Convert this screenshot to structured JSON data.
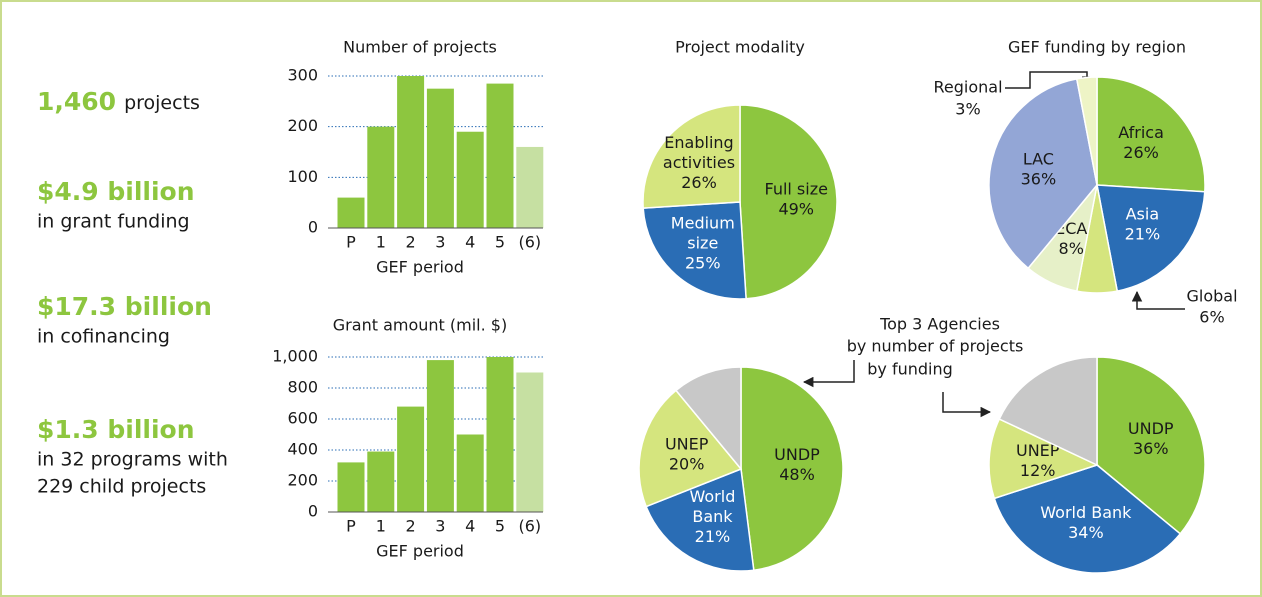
{
  "stats": [
    {
      "value": "1,460",
      "lines": [
        "projects"
      ]
    },
    {
      "value": "$4.9 billion",
      "lines": [
        "in grant funding"
      ]
    },
    {
      "value": "$17.3 billion",
      "lines": [
        "in cofinancing"
      ]
    },
    {
      "value": "$1.3 billion",
      "lines": [
        "in 32 programs with",
        "229 child projects"
      ]
    }
  ],
  "agencies_title": [
    "Top 3 Agencies",
    "by number of projects",
    "by funding"
  ],
  "chart_data": [
    {
      "type": "bar",
      "title": "Number of projects",
      "x_label": "GEF period",
      "categories": [
        "P",
        "1",
        "2",
        "3",
        "4",
        "5",
        "(6)"
      ],
      "values": [
        60,
        200,
        300,
        275,
        190,
        285,
        160
      ],
      "colors": [
        "#8dc63f",
        "#8dc63f",
        "#8dc63f",
        "#8dc63f",
        "#8dc63f",
        "#8dc63f",
        "#c6e0a2"
      ],
      "ylim": [
        0,
        300
      ],
      "yticks": [
        0,
        100,
        200,
        300
      ],
      "grid": true
    },
    {
      "type": "bar",
      "title": "Grant amount (mil. $)",
      "x_label": "GEF period",
      "categories": [
        "P",
        "1",
        "2",
        "3",
        "4",
        "5",
        "(6)"
      ],
      "values": [
        320,
        390,
        680,
        980,
        500,
        1000,
        900
      ],
      "colors": [
        "#8dc63f",
        "#8dc63f",
        "#8dc63f",
        "#8dc63f",
        "#8dc63f",
        "#8dc63f",
        "#c6e0a2"
      ],
      "ylim": [
        0,
        1000
      ],
      "yticks": [
        0,
        200,
        400,
        600,
        800,
        {
          "value": 1000,
          "label": "1,000"
        }
      ],
      "grid": true
    },
    {
      "type": "pie",
      "title": "Project modality",
      "labels": [
        [
          "Full size"
        ],
        [
          "Medium",
          "size"
        ],
        [
          "Enabling",
          "activities"
        ]
      ],
      "values": [
        49,
        25,
        26
      ],
      "value_labels": [
        "49%",
        "25%",
        "26%"
      ],
      "colors": [
        "#8dc63f",
        "#2a6db5",
        "#d5e57e"
      ]
    },
    {
      "type": "pie",
      "title": "GEF funding by region",
      "labels": [
        [
          "Africa"
        ],
        [
          "Asia"
        ],
        [
          "Global"
        ],
        [
          "ECA"
        ],
        [
          "LAC"
        ],
        [
          "Regional"
        ]
      ],
      "values": [
        26,
        21,
        6,
        8,
        36,
        3
      ],
      "value_labels": [
        "26%",
        "21%",
        "6%",
        "8%",
        "36%",
        "3%"
      ],
      "colors": [
        "#8dc63f",
        "#2a6db5",
        "#d5e57e",
        "#e6f0c8",
        "#93a6d6",
        "#eef4c6"
      ]
    },
    {
      "type": "pie",
      "labels": [
        [
          "UNDP"
        ],
        [
          "World",
          "Bank"
        ],
        [
          "UNEP"
        ],
        null
      ],
      "values": [
        48,
        21,
        20,
        11
      ],
      "value_labels": [
        "48%",
        "21%",
        "20%",
        null
      ],
      "colors": [
        "#8dc63f",
        "#2a6db5",
        "#d5e57e",
        "#c8c8c8"
      ]
    },
    {
      "type": "pie",
      "labels": [
        [
          "UNDP"
        ],
        [
          "World Bank"
        ],
        [
          "UNEP"
        ],
        null
      ],
      "values": [
        36,
        34,
        12,
        18
      ],
      "value_labels": [
        "36%",
        "34%",
        "12%",
        null
      ],
      "colors": [
        "#8dc63f",
        "#2a6db5",
        "#d5e57e",
        "#c8c8c8"
      ]
    }
  ]
}
